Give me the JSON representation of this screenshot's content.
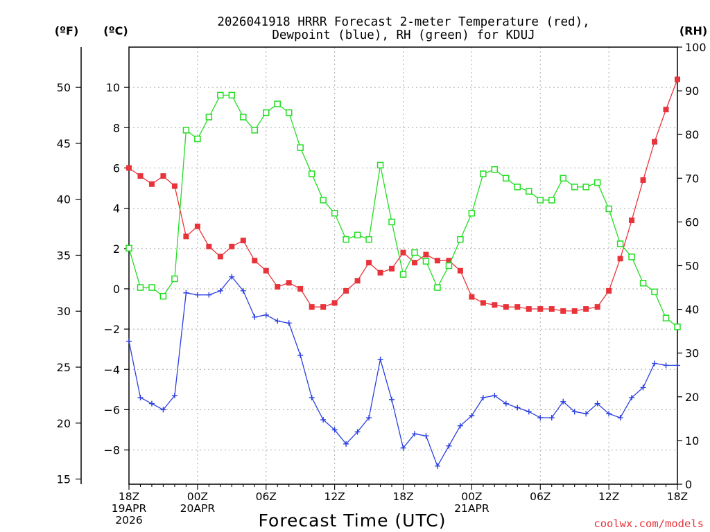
{
  "chart_data": {
    "type": "line",
    "title_line1": "2026041918 HRRR Forecast 2-meter Temperature (red),",
    "title_line2": "Dewpoint (blue), RH (green) for KDUJ",
    "xlabel": "Forecast Time (UTC)",
    "unit_f": "(ºF)",
    "unit_c": "(ºC)",
    "unit_rh": "(RH)",
    "credit": "coolwx.com/models",
    "x_hours": [
      0,
      1,
      2,
      3,
      4,
      5,
      6,
      7,
      8,
      9,
      10,
      11,
      12,
      13,
      14,
      15,
      16,
      17,
      18,
      19,
      20,
      21,
      22,
      23,
      24,
      25,
      26,
      27,
      28,
      29,
      30,
      31,
      32,
      33,
      34,
      35,
      36,
      37,
      38,
      39,
      40,
      41,
      42,
      43,
      44,
      45,
      46,
      47,
      48
    ],
    "x_range": [
      0,
      48
    ],
    "c_range": [
      -9.7,
      12.0
    ],
    "f_range": [
      14.54,
      53.6
    ],
    "rh_range": [
      0,
      100
    ],
    "x_ticks": [
      {
        "hour": 0,
        "lines": [
          "18Z",
          "19APR",
          "2026"
        ]
      },
      {
        "hour": 6,
        "lines": [
          "00Z",
          "20APR"
        ]
      },
      {
        "hour": 12,
        "lines": [
          "06Z"
        ]
      },
      {
        "hour": 18,
        "lines": [
          "12Z"
        ]
      },
      {
        "hour": 24,
        "lines": [
          "18Z"
        ]
      },
      {
        "hour": 30,
        "lines": [
          "00Z",
          "21APR"
        ]
      },
      {
        "hour": 36,
        "lines": [
          "06Z"
        ]
      },
      {
        "hour": 42,
        "lines": [
          "12Z"
        ]
      },
      {
        "hour": 48,
        "lines": [
          "18Z"
        ]
      }
    ],
    "c_ticks": [
      "−8",
      "−6",
      "−4",
      "−2",
      "0",
      "2",
      "4",
      "6",
      "8",
      "10"
    ],
    "f_ticks": [
      "15",
      "20",
      "25",
      "30",
      "35",
      "40",
      "45",
      "50"
    ],
    "rh_ticks": [
      "0",
      "10",
      "20",
      "30",
      "40",
      "50",
      "60",
      "70",
      "80",
      "90",
      "100"
    ],
    "series": [
      {
        "name": "Temperature",
        "color": "#e8333a",
        "marker": "filled-square",
        "values": [
          6.0,
          5.6,
          5.2,
          5.6,
          5.1,
          2.6,
          3.1,
          2.1,
          1.6,
          2.1,
          2.4,
          1.4,
          0.9,
          0.1,
          0.3,
          0.0,
          -0.9,
          -0.9,
          -0.7,
          -0.1,
          0.4,
          1.3,
          0.8,
          1.0,
          1.8,
          1.3,
          1.7,
          1.4,
          1.4,
          0.9,
          -0.4,
          -0.7,
          -0.8,
          -0.9,
          -0.9,
          -1.0,
          -1.0,
          -1.0,
          -1.1,
          -1.1,
          -1.0,
          -0.9,
          -0.1,
          1.5,
          3.4,
          5.4,
          7.3,
          8.9,
          10.4
        ]
      },
      {
        "name": "Dewpoint",
        "color": "#2a3fe0",
        "marker": "plus",
        "values": [
          -2.6,
          -5.4,
          -5.7,
          -6.0,
          -5.3,
          -0.2,
          -0.3,
          -0.3,
          -0.1,
          0.6,
          -0.1,
          -1.4,
          -1.3,
          -1.6,
          -1.7,
          -3.3,
          -5.4,
          -6.5,
          -7.0,
          -7.7,
          -7.1,
          -6.4,
          -3.5,
          -5.5,
          -7.9,
          -7.2,
          -7.3,
          -8.8,
          -7.8,
          -6.8,
          -6.3,
          -5.4,
          -5.3,
          -5.7,
          -5.9,
          -6.1,
          -6.4,
          -6.4,
          -5.6,
          -6.1,
          -6.2,
          -5.7,
          -6.2,
          -6.4,
          -5.4,
          -4.9,
          -3.7,
          -3.8,
          -3.8
        ]
      },
      {
        "name": "RH",
        "color": "#22dd22",
        "marker": "open-square",
        "values": [
          54,
          45,
          45,
          43,
          47,
          81,
          79,
          84,
          89,
          89,
          84,
          81,
          85,
          87,
          85,
          77,
          71,
          65,
          62,
          56,
          57,
          56,
          73,
          60,
          48,
          53,
          51,
          45,
          50,
          56,
          62,
          71,
          72,
          70,
          68,
          67,
          65,
          65,
          70,
          68,
          68,
          69,
          63,
          55,
          52,
          46,
          44,
          38,
          36
        ]
      }
    ]
  }
}
